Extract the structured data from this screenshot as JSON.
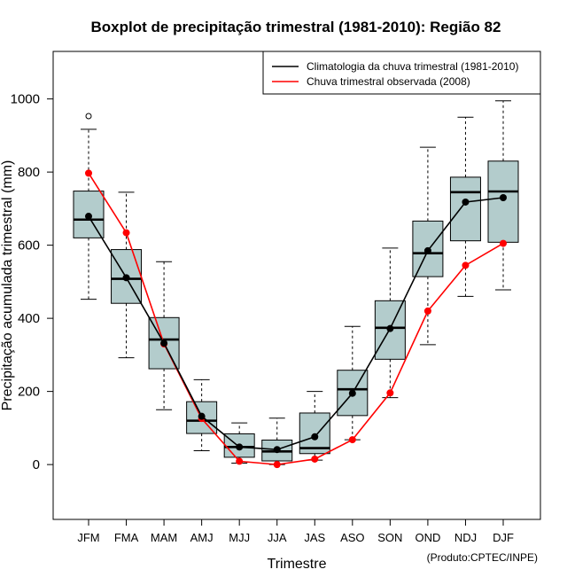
{
  "chart_data": {
    "type": "boxplot",
    "title": "Boxplot de precipitação trimestral (1981-2010): Região 82",
    "xlabel": "Trimestre",
    "ylabel": "Precipitação acumulada trimestral (mm)",
    "credit": "(Produto:CPTEC/INPE)",
    "ylim": [
      -150,
      1130
    ],
    "yticks": [
      0,
      200,
      400,
      600,
      800,
      1000
    ],
    "categories": [
      "JFM",
      "FMA",
      "MAM",
      "AMJ",
      "MJJ",
      "JJA",
      "JAS",
      "ASO",
      "SON",
      "OND",
      "NDJ",
      "DJF"
    ],
    "boxes": [
      {
        "whisker_low": 452,
        "q1": 620,
        "median": 670,
        "q3": 748,
        "whisker_high": 917,
        "outliers": [
          953
        ]
      },
      {
        "whisker_low": 292,
        "q1": 441,
        "median": 508,
        "q3": 588,
        "whisker_high": 745,
        "outliers": []
      },
      {
        "whisker_low": 150,
        "q1": 262,
        "median": 342,
        "q3": 402,
        "whisker_high": 555,
        "outliers": []
      },
      {
        "whisker_low": 38,
        "q1": 85,
        "median": 120,
        "q3": 172,
        "whisker_high": 232,
        "outliers": []
      },
      {
        "whisker_low": 4,
        "q1": 20,
        "median": 48,
        "q3": 84,
        "whisker_high": 114,
        "outliers": []
      },
      {
        "whisker_low": 0,
        "q1": 10,
        "median": 36,
        "q3": 67,
        "whisker_high": 127,
        "outliers": []
      },
      {
        "whisker_low": 12,
        "q1": 30,
        "median": 45,
        "q3": 141,
        "whisker_high": 200,
        "outliers": []
      },
      {
        "whisker_low": 68,
        "q1": 134,
        "median": 206,
        "q3": 258,
        "whisker_high": 378,
        "outliers": []
      },
      {
        "whisker_low": 183,
        "q1": 288,
        "median": 374,
        "q3": 448,
        "whisker_high": 592,
        "outliers": []
      },
      {
        "whisker_low": 328,
        "q1": 514,
        "median": 578,
        "q3": 666,
        "whisker_high": 868,
        "outliers": []
      },
      {
        "whisker_low": 460,
        "q1": 612,
        "median": 745,
        "q3": 786,
        "whisker_high": 950,
        "outliers": []
      },
      {
        "whisker_low": 478,
        "q1": 608,
        "median": 747,
        "q3": 830,
        "whisker_high": 995,
        "outliers": []
      }
    ],
    "series": [
      {
        "name": "Climatologia da chuva trimestral (1981-2010)",
        "color": "#000000",
        "values": [
          679,
          511,
          332,
          132,
          48,
          41,
          76,
          195,
          372,
          585,
          718,
          730
        ]
      },
      {
        "name": "Chuva trimestral observada (2008)",
        "color": "#ff0000",
        "values": [
          797,
          634,
          330,
          126,
          9,
          0,
          15,
          68,
          196,
          420,
          545,
          605
        ]
      }
    ],
    "legend_position": "top-right",
    "box_fill": "#b3cccc"
  }
}
